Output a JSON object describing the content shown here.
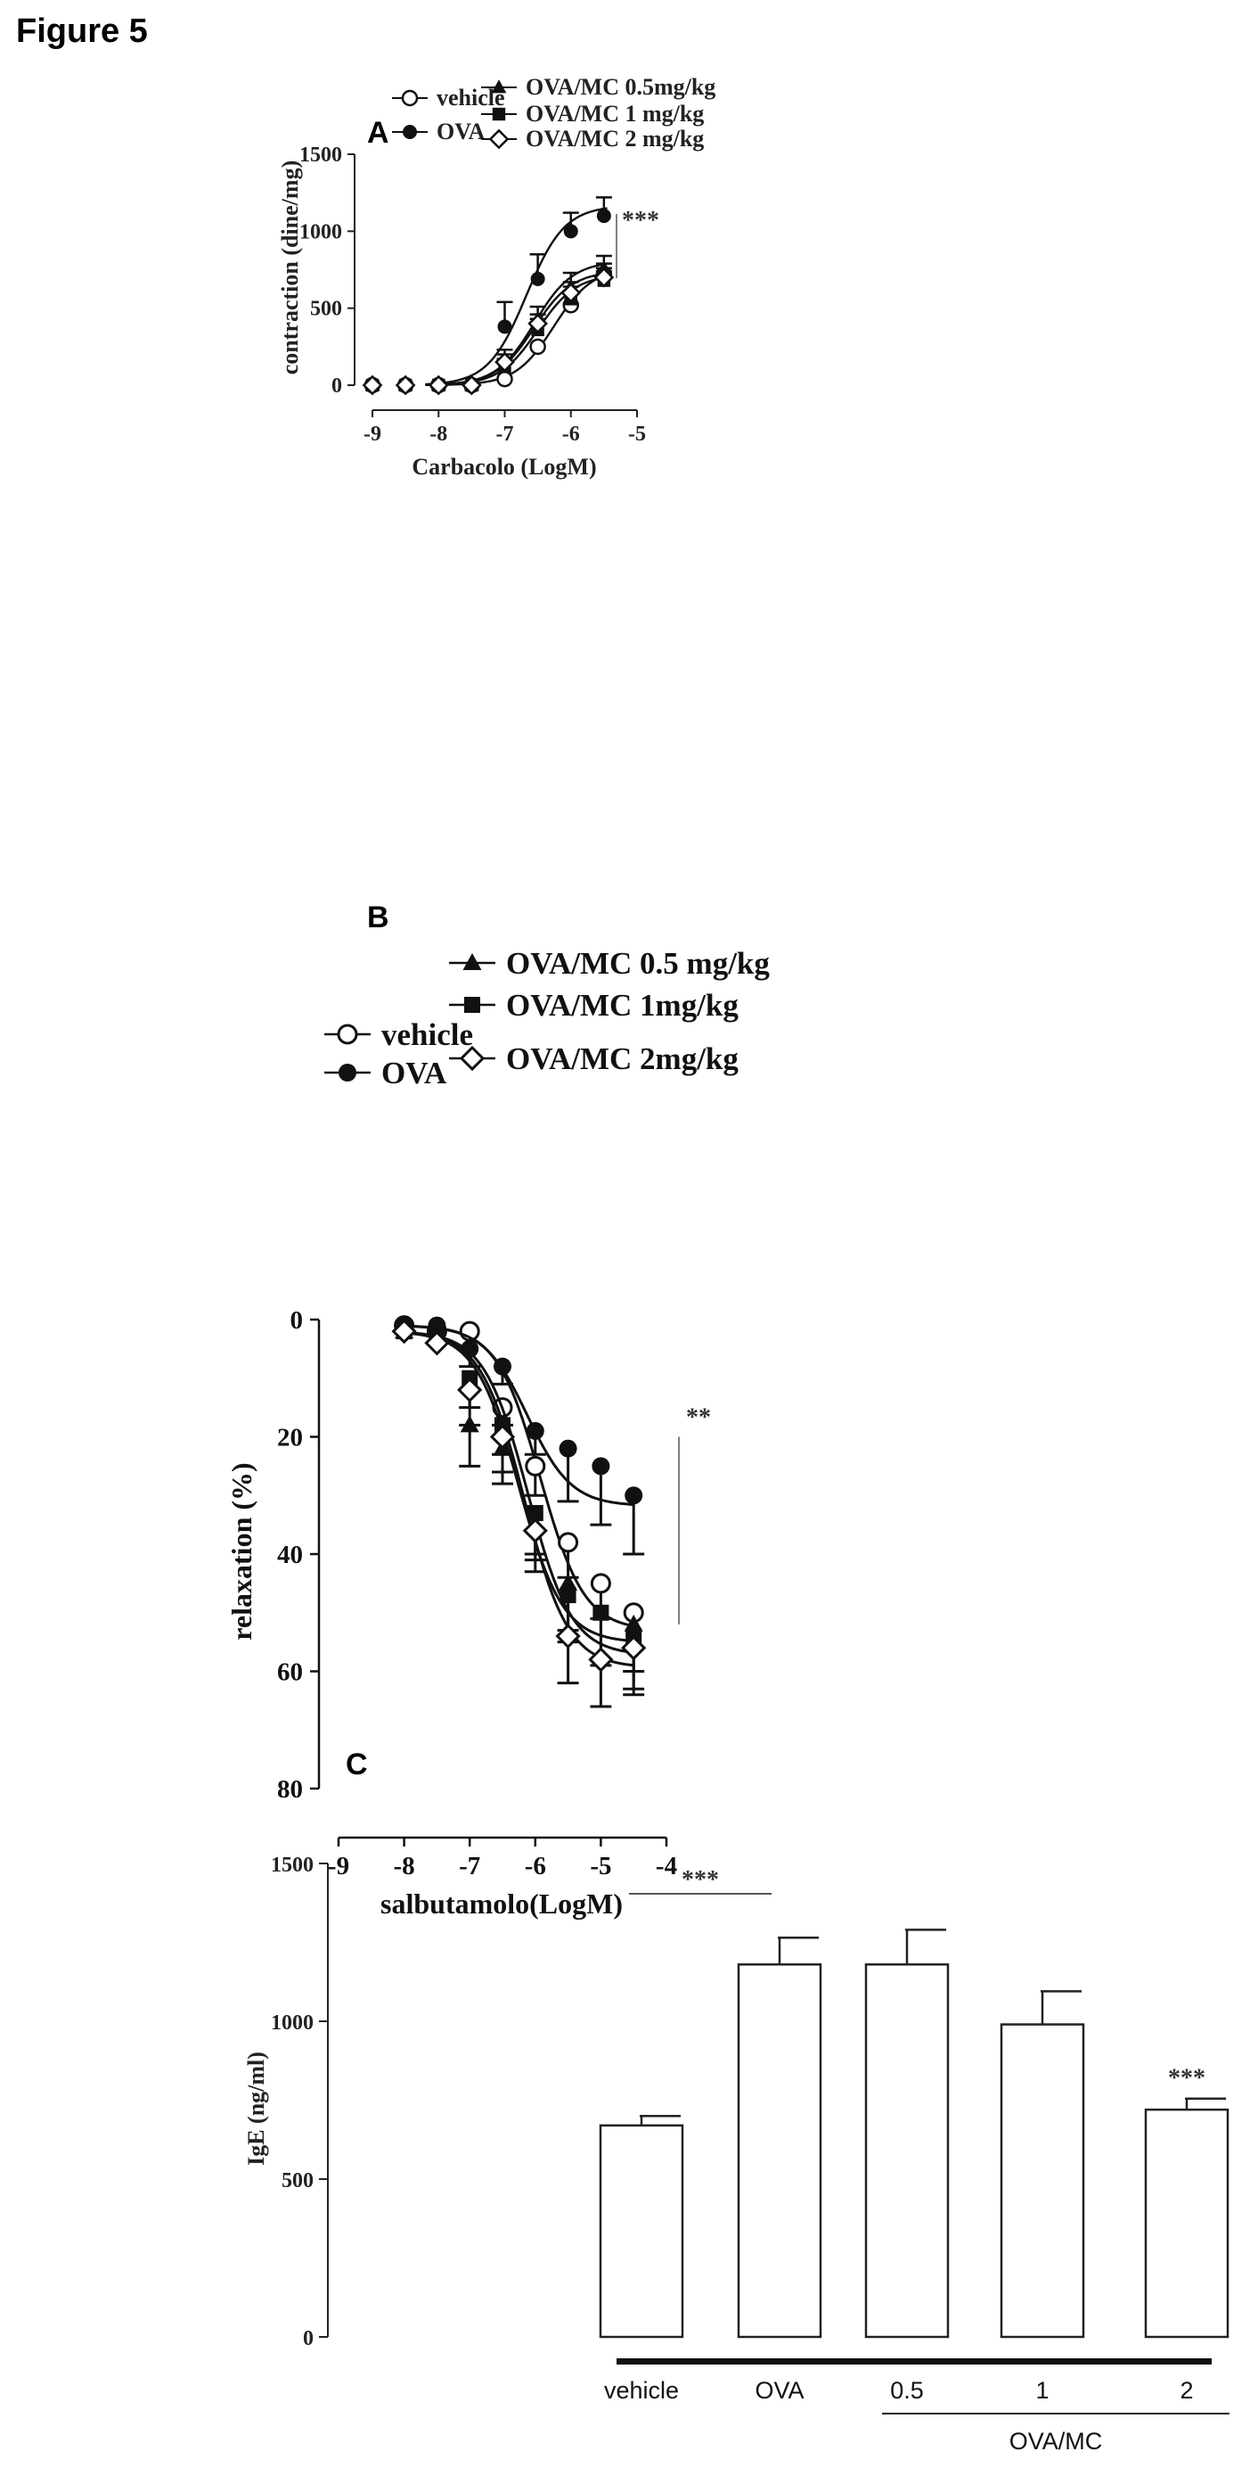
{
  "figure_title": "Figure 5",
  "chart_data": [
    {
      "panel": "A",
      "type": "line",
      "xlabel": "Carbacolo (LogM)",
      "ylabel": "contraction (dine/mg)",
      "xlim": [
        -9,
        -5
      ],
      "ylim": [
        0,
        1500
      ],
      "xticks": [
        "-9",
        "-8",
        "-7",
        "-6",
        "-5"
      ],
      "yticks": [
        "0",
        "500",
        "1000",
        "1500"
      ],
      "significance": "***",
      "legend_placement": "top",
      "series": [
        {
          "name": "vehicle",
          "marker": "open-circle",
          "x": [
            -9,
            -8.5,
            -8,
            -7.5,
            -7,
            -6.5,
            -6,
            -5.5
          ],
          "y": [
            0,
            0,
            0,
            0,
            40,
            250,
            520,
            720
          ],
          "err": [
            0,
            0,
            0,
            0,
            0,
            0,
            0,
            70
          ]
        },
        {
          "name": "OVA",
          "marker": "filled-circle",
          "x": [
            -9,
            -8.5,
            -8,
            -7.5,
            -7,
            -6.5,
            -6,
            -5.5
          ],
          "y": [
            0,
            0,
            0,
            0,
            380,
            690,
            1000,
            1100
          ],
          "err": [
            0,
            0,
            0,
            0,
            160,
            160,
            120,
            120
          ]
        },
        {
          "name": "OVA/MC 0.5mg/kg",
          "marker": "filled-triangle",
          "x": [
            -9,
            -8.5,
            -8,
            -7.5,
            -7,
            -6.5,
            -6,
            -5.5
          ],
          "y": [
            0,
            0,
            0,
            0,
            170,
            430,
            640,
            760
          ],
          "err": [
            0,
            0,
            0,
            0,
            60,
            80,
            90,
            80
          ]
        },
        {
          "name": "OVA/MC 1 mg/kg",
          "marker": "filled-square",
          "x": [
            -9,
            -8.5,
            -8,
            -7.5,
            -7,
            -6.5,
            -6,
            -5.5
          ],
          "y": [
            0,
            0,
            0,
            0,
            120,
            360,
            560,
            680
          ],
          "err": [
            0,
            0,
            0,
            0,
            50,
            70,
            80,
            60
          ]
        },
        {
          "name": "OVA/MC 2 mg/kg",
          "marker": "open-diamond",
          "x": [
            -9,
            -8.5,
            -8,
            -7.5,
            -7,
            -6.5,
            -6,
            -5.5
          ],
          "y": [
            0,
            0,
            0,
            0,
            150,
            400,
            600,
            700
          ],
          "err": [
            0,
            0,
            0,
            0,
            50,
            60,
            70,
            60
          ]
        }
      ]
    },
    {
      "panel": "B",
      "type": "line",
      "xlabel": "salbutamolo(LogM)",
      "ylabel": "relaxation (%)",
      "xlim": [
        -9,
        -4
      ],
      "ylim": [
        0,
        80
      ],
      "y_inverted": true,
      "xticks": [
        "-9",
        "-8",
        "-7",
        "-6",
        "-5",
        "-4"
      ],
      "yticks": [
        "0",
        "20",
        "40",
        "60",
        "80"
      ],
      "significance": "**",
      "legend_placement": "top",
      "series": [
        {
          "name": "vehicle",
          "marker": "open-circle",
          "x": [
            -8,
            -7.5,
            -7,
            -6.5,
            -6,
            -5.5,
            -5,
            -4.5
          ],
          "y": [
            1,
            2,
            2,
            15,
            25,
            38,
            45,
            50
          ],
          "err": [
            0,
            0,
            0,
            3,
            5,
            6,
            6,
            6
          ]
        },
        {
          "name": "OVA",
          "marker": "filled-circle",
          "x": [
            -8,
            -7.5,
            -7,
            -6.5,
            -6,
            -5.5,
            -5,
            -4.5
          ],
          "y": [
            1,
            1,
            5,
            8,
            19,
            22,
            25,
            30
          ],
          "err": [
            0,
            0,
            3,
            3,
            4,
            9,
            10,
            10
          ]
        },
        {
          "name": "OVA/MC 0.5 mg/kg",
          "marker": "filled-triangle",
          "x": [
            -8,
            -7.5,
            -7,
            -6.5,
            -6,
            -5.5,
            -5,
            -4.5
          ],
          "y": [
            2,
            3,
            18,
            22,
            35,
            45,
            50,
            52
          ],
          "err": [
            0,
            0,
            7,
            6,
            6,
            8,
            8,
            8
          ]
        },
        {
          "name": "OVA/MC 1mg/kg",
          "marker": "filled-square",
          "x": [
            -8,
            -7.5,
            -7,
            -6.5,
            -6,
            -5.5,
            -5,
            -4.5
          ],
          "y": [
            2,
            3,
            10,
            18,
            33,
            47,
            50,
            54
          ],
          "err": [
            0,
            0,
            5,
            5,
            7,
            8,
            9,
            9
          ]
        },
        {
          "name": "OVA/MC 2mg/kg",
          "marker": "open-diamond",
          "x": [
            -8,
            -7.5,
            -7,
            -6.5,
            -6,
            -5.5,
            -5,
            -4.5
          ],
          "y": [
            2,
            4,
            12,
            20,
            36,
            54,
            58,
            56
          ],
          "err": [
            0,
            0,
            6,
            6,
            7,
            8,
            8,
            8
          ]
        }
      ]
    },
    {
      "panel": "C",
      "type": "bar",
      "ylabel": "IgE (ng/ml)",
      "ylim": [
        0,
        1500
      ],
      "yticks": [
        "0",
        "500",
        "1000",
        "1500"
      ],
      "categories": [
        "vehicle",
        "OVA",
        "0.5",
        "1",
        "2"
      ],
      "group_label": "OVA/MC",
      "values": [
        670,
        1180,
        1180,
        990,
        720
      ],
      "err": [
        30,
        85,
        110,
        105,
        35
      ],
      "significance": [
        {
          "text": "***",
          "between": [
            "vehicle",
            "OVA"
          ]
        },
        {
          "text": "***",
          "over": "2"
        }
      ]
    }
  ]
}
